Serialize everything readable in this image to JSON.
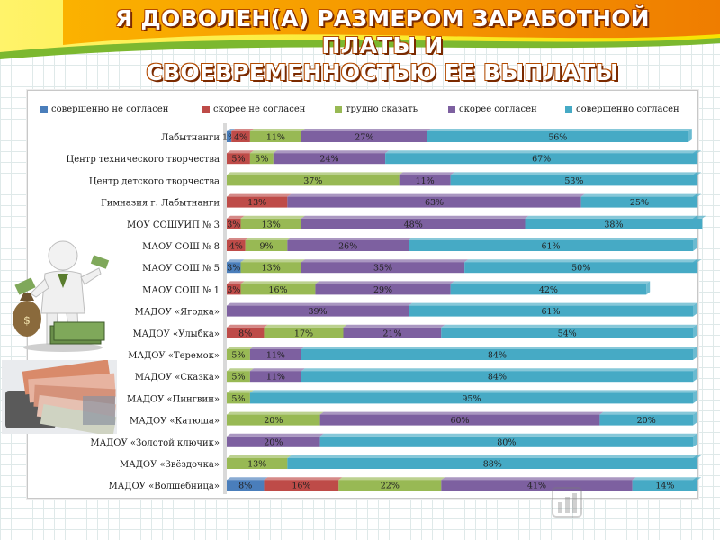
{
  "title": {
    "line1": "Я ДОВОЛЕН(А) РАЗМЕРОМ ЗАРАБОТНОЙ ПЛАТЫ И",
    "line2": "СВОЕВРЕМЕННОСТЬЮ ЕЕ ВЫПЛАТЫ"
  },
  "colors": {
    "series": [
      "#4a7ebb",
      "#be4b48",
      "#98b954",
      "#7d60a0",
      "#46aac5"
    ],
    "banner_yellow": "#f6e300",
    "banner_orange": "#f18a00",
    "banner_green": "#7cb82f"
  },
  "chart_data": {
    "type": "bar",
    "orientation": "horizontal",
    "stacked": "100%",
    "legend_position": "top",
    "grid": false,
    "categories": [
      "Лабытнанги",
      "Центр технического творчества",
      "Центр детского творчества",
      "Гимназия г. Лабытнанги",
      "МОУ СОШУИП № 3",
      "МАОУ СОШ № 8",
      "МАОУ СОШ № 5",
      "МАОУ СОШ № 1",
      "МАДОУ «Ягодка»",
      "МАДОУ «Улыбка»",
      "МАДОУ «Теремок»",
      "МАДОУ «Сказка»",
      "МАДОУ «Пингвин»",
      "МАДОУ «Катюша»",
      "МАДОУ «Золотой ключик»",
      "МАДОУ «Звёздочка»",
      "МАДОУ «Волшебница»"
    ],
    "series": [
      {
        "name": "совершенно не согласен",
        "values": [
          1,
          0,
          0,
          0,
          0,
          0,
          3,
          0,
          0,
          0,
          0,
          0,
          0,
          0,
          0,
          0,
          8
        ]
      },
      {
        "name": "скорее не согласен",
        "values": [
          4,
          5,
          0,
          13,
          3,
          4,
          0,
          3,
          0,
          8,
          0,
          0,
          0,
          0,
          0,
          0,
          16
        ]
      },
      {
        "name": "трудно сказать",
        "values": [
          11,
          5,
          37,
          0,
          13,
          9,
          13,
          16,
          0,
          17,
          5,
          5,
          5,
          20,
          0,
          13,
          22
        ]
      },
      {
        "name": "скорее согласен",
        "values": [
          27,
          24,
          11,
          63,
          48,
          26,
          35,
          29,
          39,
          21,
          11,
          11,
          0,
          60,
          20,
          0,
          41
        ]
      },
      {
        "name": "совершенно согласен",
        "values": [
          56,
          67,
          53,
          25,
          38,
          61,
          50,
          42,
          61,
          54,
          84,
          84,
          95,
          20,
          80,
          88,
          14
        ]
      }
    ],
    "labels": [
      [
        "1%",
        "4%",
        "11%",
        "27%",
        "56%"
      ],
      [
        "",
        "5%",
        "5%",
        "24%",
        "67%"
      ],
      [
        "",
        "",
        "37%",
        "11%",
        "53%"
      ],
      [
        "",
        "13%",
        "",
        "63%",
        "25%"
      ],
      [
        "",
        "3%",
        "13%",
        "48%",
        "38%"
      ],
      [
        "",
        "4%",
        "9%",
        "26%",
        "61%"
      ],
      [
        "3%",
        "",
        "13%",
        "35%",
        "50%"
      ],
      [
        "",
        "3%",
        "16%",
        "29%",
        "42%"
      ],
      [
        "",
        "",
        "",
        "39%",
        "61%"
      ],
      [
        "",
        "8%",
        "17%",
        "21%",
        "54%"
      ],
      [
        "",
        "",
        "5%",
        "11%",
        "84%"
      ],
      [
        "",
        "",
        "5%",
        "11%",
        "84%"
      ],
      [
        "",
        "",
        "5%",
        "",
        "95%"
      ],
      [
        "",
        "",
        "20%",
        "60%",
        "20%"
      ],
      [
        "",
        "",
        "",
        "20%",
        "80%"
      ],
      [
        "",
        "",
        "13%",
        "",
        "88%"
      ],
      [
        "8%",
        "16%",
        "22%",
        "41%",
        "14%"
      ]
    ],
    "xlim": [
      0,
      100
    ]
  }
}
